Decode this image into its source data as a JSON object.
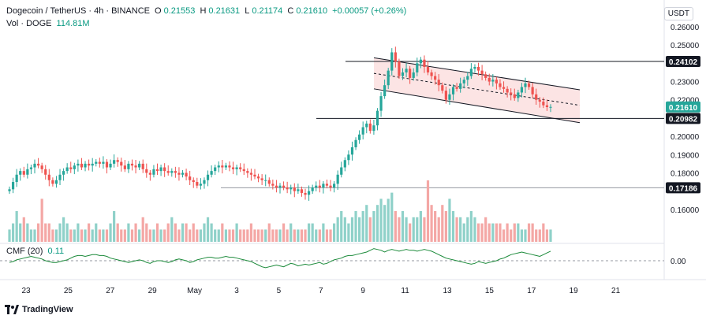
{
  "header": {
    "symbol": "Dogecoin / TetherUS · 4h · BINANCE",
    "open_label": "O",
    "open": "0.21553",
    "high_label": "H",
    "high": "0.21631",
    "low_label": "L",
    "low": "0.21174",
    "close_label": "C",
    "close": "0.21610",
    "change": "+0.00057 (+0.26%)",
    "volume_label": "Vol · DOGE",
    "volume": "114.81M",
    "cmf_label": "CMF (20)",
    "cmf_value": "0.11"
  },
  "unit": "USDT",
  "brand": "TradingView",
  "colors": {
    "up": "#26a69a",
    "down": "#ef5350",
    "vol_up": "#8fd1c9",
    "vol_down": "#f4a7a5",
    "channel_fill": "#fce4e4",
    "cmf": "#1b8a3a",
    "price_tag": "#26a69a"
  },
  "chart_data": [
    {
      "type": "candlestick",
      "ylim": [
        0.15,
        0.26
      ],
      "y_ticks": [
        "0.26000",
        "0.25000",
        "0.23000",
        "0.22000",
        "0.20000",
        "0.19000",
        "0.18000",
        "0.16000"
      ],
      "x_labels": [
        "23",
        "25",
        "27",
        "29",
        "May",
        "3",
        "5",
        "7",
        "9",
        "11",
        "13",
        "15",
        "17",
        "19",
        "21"
      ],
      "price_labels": [
        {
          "value": 0.24102,
          "text": "0.24102"
        },
        {
          "value": 0.2161,
          "text": "0.21610"
        },
        {
          "value": 0.20982,
          "text": "0.20982"
        },
        {
          "value": 0.17186,
          "text": "0.17186"
        }
      ],
      "horizontal_levels": [
        0.24102,
        0.20982,
        0.17186
      ],
      "channel": {
        "upper": [
          0.243,
          0.2255
        ],
        "lower": [
          0.226,
          0.2075
        ],
        "mid": [
          0.2345,
          0.217
        ]
      },
      "current_close": 0.2161,
      "closes": [
        0.171,
        0.175,
        0.179,
        0.181,
        0.179,
        0.182,
        0.183,
        0.185,
        0.184,
        0.182,
        0.179,
        0.176,
        0.174,
        0.176,
        0.179,
        0.181,
        0.183,
        0.182,
        0.184,
        0.185,
        0.183,
        0.185,
        0.184,
        0.185,
        0.186,
        0.185,
        0.186,
        0.183,
        0.185,
        0.187,
        0.186,
        0.184,
        0.182,
        0.185,
        0.184,
        0.183,
        0.185,
        0.182,
        0.18,
        0.179,
        0.182,
        0.181,
        0.183,
        0.181,
        0.18,
        0.181,
        0.18,
        0.179,
        0.18,
        0.178,
        0.176,
        0.175,
        0.173,
        0.174,
        0.176,
        0.179,
        0.181,
        0.183,
        0.184,
        0.183,
        0.184,
        0.183,
        0.182,
        0.183,
        0.182,
        0.181,
        0.18,
        0.179,
        0.178,
        0.177,
        0.176,
        0.176,
        0.174,
        0.173,
        0.172,
        0.173,
        0.172,
        0.171,
        0.172,
        0.17,
        0.171,
        0.169,
        0.168,
        0.17,
        0.172,
        0.173,
        0.172,
        0.174,
        0.173,
        0.172,
        0.174,
        0.179,
        0.183,
        0.187,
        0.19,
        0.194,
        0.198,
        0.201,
        0.205,
        0.207,
        0.203,
        0.206,
        0.214,
        0.222,
        0.228,
        0.236,
        0.246,
        0.241,
        0.233,
        0.235,
        0.237,
        0.232,
        0.235,
        0.24,
        0.242,
        0.238,
        0.235,
        0.233,
        0.231,
        0.228,
        0.225,
        0.22,
        0.223,
        0.227,
        0.226,
        0.229,
        0.231,
        0.233,
        0.237,
        0.238,
        0.236,
        0.234,
        0.232,
        0.23,
        0.231,
        0.229,
        0.227,
        0.226,
        0.224,
        0.223,
        0.221,
        0.224,
        0.227,
        0.229,
        0.227,
        0.223,
        0.22,
        0.219,
        0.217,
        0.216,
        0.2161
      ],
      "volumes": [
        0.2,
        0.3,
        0.5,
        0.3,
        0.4,
        0.3,
        0.2,
        0.2,
        0.3,
        0.7,
        0.3,
        0.3,
        0.2,
        0.2,
        0.3,
        0.4,
        0.3,
        0.2,
        0.2,
        0.3,
        0.2,
        0.2,
        0.3,
        0.2,
        0.3,
        0.2,
        0.2,
        0.2,
        0.3,
        0.5,
        0.3,
        0.2,
        0.2,
        0.3,
        0.2,
        0.3,
        0.2,
        0.4,
        0.3,
        0.2,
        0.2,
        0.3,
        0.2,
        0.2,
        0.3,
        0.4,
        0.3,
        0.2,
        0.3,
        0.3,
        0.2,
        0.3,
        0.2,
        0.2,
        0.3,
        0.4,
        0.3,
        0.2,
        0.2,
        0.3,
        0.2,
        0.2,
        0.2,
        0.3,
        0.2,
        0.2,
        0.2,
        0.3,
        0.2,
        0.2,
        0.2,
        0.2,
        0.3,
        0.2,
        0.2,
        0.2,
        0.3,
        0.2,
        0.3,
        0.2,
        0.2,
        0.2,
        0.2,
        0.3,
        0.3,
        0.2,
        0.2,
        0.3,
        0.2,
        0.2,
        0.3,
        0.4,
        0.5,
        0.4,
        0.3,
        0.4,
        0.5,
        0.4,
        0.5,
        0.6,
        0.4,
        0.5,
        0.6,
        0.7,
        0.6,
        0.7,
        0.8,
        0.5,
        0.4,
        0.5,
        0.4,
        0.3,
        0.4,
        0.4,
        0.5,
        0.4,
        1.0,
        0.6,
        0.5,
        0.4,
        0.6,
        0.5,
        0.7,
        0.5,
        0.4,
        0.4,
        0.3,
        0.4,
        0.5,
        0.4,
        0.3,
        0.3,
        0.4,
        0.3,
        0.3,
        0.3,
        0.3,
        0.2,
        0.3,
        0.2,
        0.3,
        0.3,
        0.2,
        0.2,
        0.3,
        0.3,
        0.2,
        0.2,
        0.3,
        0.2,
        0.2
      ],
      "cmf": [
        -0.02,
        -0.01,
        0.01,
        0.02,
        0.03,
        0.04,
        0.05,
        0.04,
        0.03,
        0.02,
        0.0,
        -0.01,
        -0.02,
        -0.02,
        -0.01,
        0.0,
        0.01,
        0.03,
        0.05,
        0.06,
        0.06,
        0.05,
        0.06,
        0.07,
        0.07,
        0.06,
        0.06,
        0.05,
        0.03,
        0.02,
        0.01,
        0.0,
        -0.01,
        -0.02,
        -0.01,
        0.0,
        0.01,
        0.0,
        -0.02,
        -0.03,
        -0.01,
        0.0,
        0.0,
        -0.01,
        -0.02,
        -0.01,
        0.01,
        0.02,
        0.01,
        0.0,
        -0.02,
        -0.01,
        0.01,
        0.02,
        0.03,
        0.04,
        0.04,
        0.03,
        0.03,
        0.04,
        0.05,
        0.04,
        0.04,
        0.03,
        0.02,
        0.01,
        0.0,
        -0.01,
        -0.03,
        -0.05,
        -0.07,
        -0.08,
        -0.07,
        -0.06,
        -0.05,
        -0.06,
        -0.07,
        -0.05,
        -0.03,
        -0.04,
        -0.06,
        -0.05,
        -0.04,
        -0.05,
        -0.04,
        -0.03,
        -0.02,
        -0.04,
        -0.03,
        -0.01,
        0.01,
        0.02,
        0.03,
        0.05,
        0.06,
        0.06,
        0.07,
        0.08,
        0.09,
        0.1,
        0.12,
        0.14,
        0.13,
        0.12,
        0.1,
        0.12,
        0.13,
        0.12,
        0.11,
        0.12,
        0.13,
        0.12,
        0.12,
        0.11,
        0.12,
        0.13,
        0.12,
        0.11,
        0.09,
        0.07,
        0.05,
        0.03,
        0.02,
        0.01,
        0.0,
        -0.01,
        -0.02,
        -0.03,
        -0.04,
        -0.03,
        -0.01,
        -0.02,
        -0.03,
        -0.02,
        -0.01,
        0.0,
        0.02,
        0.03,
        0.05,
        0.07,
        0.08,
        0.09,
        0.1,
        0.09,
        0.08,
        0.07,
        0.06,
        0.05,
        0.07,
        0.09,
        0.11
      ],
      "cmf_ticks": [
        "0.00"
      ]
    }
  ]
}
